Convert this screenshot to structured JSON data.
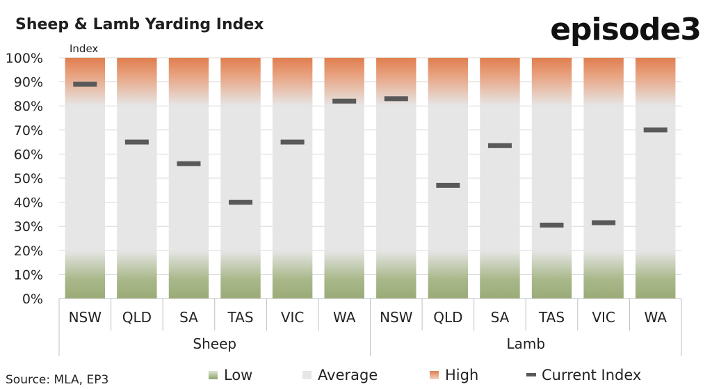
{
  "header": {
    "title": "Sheep & Lamb Yarding Index",
    "logo": "episode3",
    "y_unit_label": "Index"
  },
  "footer": {
    "source": "Source: MLA, EP3"
  },
  "legend": [
    {
      "key": "low",
      "label": "Low",
      "color": "#9aab77"
    },
    {
      "key": "average",
      "label": "Average",
      "color": "#e6e6e6"
    },
    {
      "key": "high",
      "label": "High",
      "color": "#e07e4f"
    },
    {
      "key": "current",
      "label": "Current Index",
      "color": "#595959"
    }
  ],
  "chart_data": {
    "type": "bar",
    "title": "Sheep & Lamb Yarding Index",
    "ylabel": "Index",
    "ylim": [
      0,
      100
    ],
    "yticks": [
      "0%",
      "10%",
      "20%",
      "30%",
      "40%",
      "50%",
      "60%",
      "70%",
      "80%",
      "90%",
      "100%"
    ],
    "grid": true,
    "legend_position": "bottom",
    "bands": {
      "low": [
        0,
        20
      ],
      "average": [
        20,
        80
      ],
      "high": [
        80,
        100
      ]
    },
    "groups": [
      {
        "name": "Sheep",
        "categories": [
          "NSW",
          "QLD",
          "SA",
          "TAS",
          "VIC",
          "WA"
        ],
        "current_index": [
          89,
          65,
          56,
          40,
          65,
          82
        ]
      },
      {
        "name": "Lamb",
        "categories": [
          "NSW",
          "QLD",
          "SA",
          "TAS",
          "VIC",
          "WA"
        ],
        "current_index": [
          83,
          47,
          63.5,
          30.5,
          31.5,
          70
        ]
      }
    ]
  }
}
